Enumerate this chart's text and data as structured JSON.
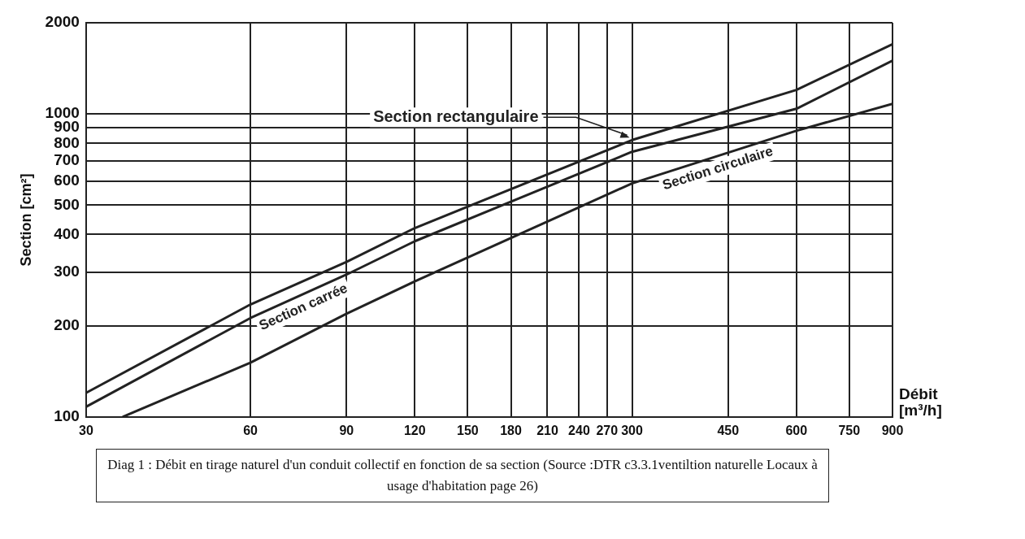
{
  "chart_data": {
    "type": "line",
    "xlabel": "Débit [m³/h]",
    "ylabel": "Section [cm²]",
    "x": [
      30,
      60,
      90,
      120,
      300,
      600,
      900
    ],
    "series": [
      {
        "name": "Section rectangulaire",
        "color": "#222222",
        "values": [
          120,
          235,
          325,
          420,
          820,
          1200,
          1700
        ]
      },
      {
        "name": "Section carrée",
        "color": "#222222",
        "values": [
          108,
          212,
          295,
          380,
          750,
          1040,
          1500
        ]
      },
      {
        "name": "Section circulaire",
        "color": "#222222",
        "x": [
          35,
          60,
          90,
          120,
          300,
          600,
          900
        ],
        "values": [
          100,
          151,
          219,
          280,
          590,
          880,
          1080
        ]
      }
    ],
    "xlim": [
      30,
      900
    ],
    "ylim": [
      100,
      2000
    ],
    "xticks": [
      30,
      60,
      90,
      120,
      150,
      180,
      210,
      240,
      270,
      300,
      450,
      600,
      750,
      900
    ],
    "yticks": [
      100,
      200,
      300,
      400,
      500,
      600,
      700,
      800,
      900,
      1000,
      2000
    ],
    "log": "xy",
    "grid": true,
    "legend": false,
    "marker": "none",
    "line_style": "solid",
    "annotations": [
      "Diag 1 : Débit en tirage naturel d'un conduit collectif en fonction de sa section (Source :DTR c3.3.1ventiltion naturelle Locaux à usage d'habitation page 26)"
    ]
  }
}
